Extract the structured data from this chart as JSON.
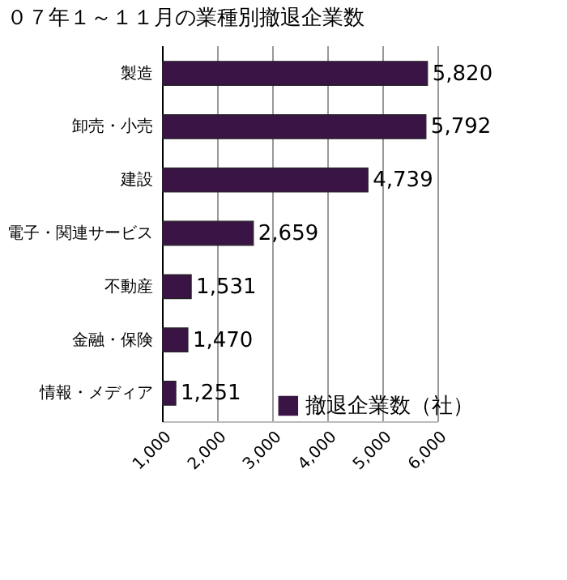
{
  "chart_data": {
    "type": "bar",
    "orientation": "horizontal",
    "title": "０７年１～１１月の業種別撤退企業数",
    "categories": [
      "製造",
      "卸売・小売",
      "建設",
      "電子・関連サービス",
      "不動産",
      "金融・保険",
      "情報・メディア"
    ],
    "series": [
      {
        "name": "撤退企業数（社）",
        "color": "#3a1445",
        "values": [
          5820,
          5792,
          4739,
          2659,
          1531,
          1470,
          1251
        ]
      }
    ],
    "xlim": [
      1000,
      6000
    ],
    "xticks": [
      {
        "value": 1000,
        "label": "1,000"
      },
      {
        "value": 2000,
        "label": "2,000"
      },
      {
        "value": 3000,
        "label": "3,000"
      },
      {
        "value": 4000,
        "label": "4,000"
      },
      {
        "value": 5000,
        "label": "5,000"
      },
      {
        "value": 6000,
        "label": "6,000"
      }
    ],
    "value_labels": [
      "5,820",
      "5,792",
      "4,739",
      "2,659",
      "1,531",
      "1,470",
      "1,251"
    ],
    "grid": "x",
    "legend": "bottom right"
  }
}
